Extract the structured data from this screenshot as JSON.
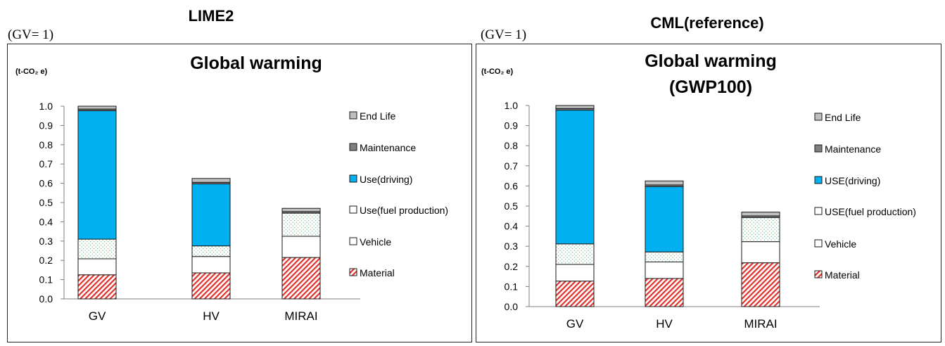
{
  "panels": [
    {
      "method_title": "LIME2",
      "scale_note": "(GV= 1)",
      "chart_title": [
        "Global warming"
      ],
      "unit_label": "(t-CO₂ e)"
    },
    {
      "method_title": "CML(reference)",
      "scale_note": "(GV= 1)",
      "chart_title": [
        "Global warming",
        "(GWP100)"
      ],
      "unit_label": "(t-CO₂ e)"
    }
  ],
  "colors": {
    "material": "#e0302a",
    "vehicle": "#ffffff",
    "use_fuel": "#2e9d5e",
    "use_driving": "#00b0f0",
    "maintenance": "#7f7f7f",
    "end_life": "#bfbfbf"
  },
  "chart_data": [
    {
      "type": "bar",
      "stacked": true,
      "categories": [
        "GV",
        "HV",
        "MIRAI"
      ],
      "ylim": [
        0,
        1.0
      ],
      "yticks": [
        "0.0",
        "0.1",
        "0.2",
        "0.3",
        "0.4",
        "0.5",
        "0.6",
        "0.7",
        "0.8",
        "0.9",
        "1.0"
      ],
      "grid": false,
      "legend_position": "right",
      "series": [
        {
          "name": "Material",
          "values": [
            0.125,
            0.135,
            0.215
          ]
        },
        {
          "name": "Vehicle",
          "values": [
            0.083,
            0.085,
            0.11
          ]
        },
        {
          "name": "Use(fuel production)",
          "values": [
            0.102,
            0.055,
            0.12
          ]
        },
        {
          "name": "Use(driving)",
          "values": [
            0.667,
            0.322,
            0.0
          ]
        },
        {
          "name": "Maintenance",
          "values": [
            0.008,
            0.008,
            0.008
          ]
        },
        {
          "name": "End Life",
          "values": [
            0.015,
            0.02,
            0.017
          ]
        }
      ]
    },
    {
      "type": "bar",
      "stacked": true,
      "categories": [
        "GV",
        "HV",
        "MIRAI"
      ],
      "ylim": [
        0,
        1.0
      ],
      "yticks": [
        "0.0",
        "0.1",
        "0.2",
        "0.3",
        "0.4",
        "0.5",
        "0.6",
        "0.7",
        "0.8",
        "0.9",
        "1.0"
      ],
      "grid": false,
      "legend_position": "right",
      "series": [
        {
          "name": "Material",
          "values": [
            0.127,
            0.14,
            0.218
          ]
        },
        {
          "name": "Vehicle",
          "values": [
            0.083,
            0.082,
            0.105
          ]
        },
        {
          "name": "USE(fuel production)",
          "values": [
            0.102,
            0.05,
            0.12
          ]
        },
        {
          "name": "USE(driving)",
          "values": [
            0.665,
            0.325,
            0.0
          ]
        },
        {
          "name": "Maintenance",
          "values": [
            0.008,
            0.008,
            0.008
          ]
        },
        {
          "name": "End Life",
          "values": [
            0.015,
            0.02,
            0.019
          ]
        }
      ]
    }
  ]
}
